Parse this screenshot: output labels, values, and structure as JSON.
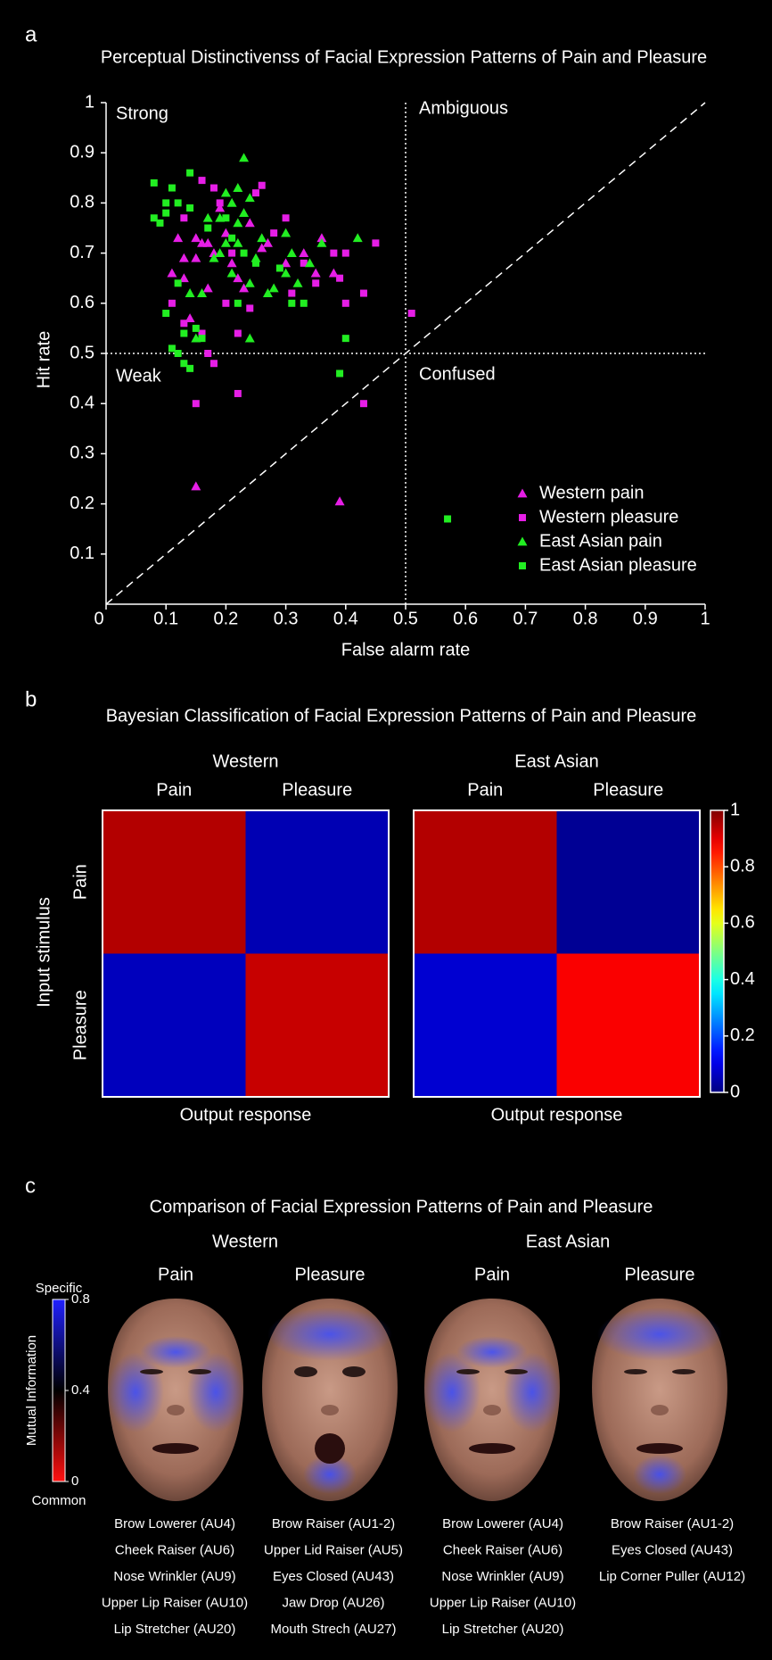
{
  "panel_labels": [
    "a",
    "b",
    "c"
  ],
  "chart_data": [
    {
      "type": "scatter",
      "title": "Perceptual Distinctivenss of Facial Expression Patterns of Pain and Pleasure",
      "xlabel": "False alarm rate",
      "ylabel": "Hit rate",
      "xlim": [
        0,
        1
      ],
      "ylim": [
        0,
        1
      ],
      "xticks": [
        0,
        0.1,
        0.2,
        0.3,
        0.4,
        0.5,
        0.6,
        0.7,
        0.8,
        0.9,
        1
      ],
      "yticks": [
        0.1,
        0.2,
        0.3,
        0.4,
        0.5,
        0.6,
        0.7,
        0.8,
        0.9,
        1
      ],
      "threshold": 0.5,
      "annotations": [
        "Strong",
        "Ambiguous",
        "Weak",
        "Confused"
      ],
      "legend": "lower right",
      "series": [
        {
          "name": "Western pain",
          "color": "#e61ee6",
          "marker": "triangle",
          "x": [
            0.15,
            0.39,
            0.15,
            0.16,
            0.17,
            0.18,
            0.12,
            0.13,
            0.14,
            0.13,
            0.19,
            0.2,
            0.21,
            0.24,
            0.22,
            0.26,
            0.3,
            0.33,
            0.36,
            0.38,
            0.15,
            0.11,
            0.17,
            0.23,
            0.27,
            0.35
          ],
          "y": [
            0.235,
            0.205,
            0.73,
            0.72,
            0.72,
            0.7,
            0.73,
            0.69,
            0.57,
            0.65,
            0.79,
            0.74,
            0.68,
            0.76,
            0.65,
            0.71,
            0.68,
            0.7,
            0.73,
            0.66,
            0.69,
            0.66,
            0.63,
            0.63,
            0.72,
            0.66
          ]
        },
        {
          "name": "Western pleasure",
          "color": "#e61ee6",
          "marker": "square",
          "x": [
            0.51,
            0.43,
            0.22,
            0.15,
            0.18,
            0.17,
            0.16,
            0.26,
            0.18,
            0.19,
            0.25,
            0.3,
            0.45,
            0.43,
            0.4,
            0.4,
            0.38,
            0.39,
            0.35,
            0.31,
            0.28,
            0.24,
            0.2,
            0.11,
            0.13,
            0.16,
            0.21,
            0.13,
            0.33,
            0.22
          ],
          "y": [
            0.58,
            0.4,
            0.42,
            0.4,
            0.48,
            0.5,
            0.845,
            0.835,
            0.83,
            0.8,
            0.82,
            0.77,
            0.72,
            0.62,
            0.6,
            0.7,
            0.7,
            0.65,
            0.64,
            0.62,
            0.74,
            0.59,
            0.6,
            0.6,
            0.56,
            0.54,
            0.7,
            0.77,
            0.68,
            0.54
          ]
        },
        {
          "name": "East Asian pain",
          "color": "#22ee22",
          "marker": "triangle",
          "x": [
            0.23,
            0.22,
            0.21,
            0.19,
            0.2,
            0.24,
            0.23,
            0.22,
            0.2,
            0.19,
            0.18,
            0.21,
            0.24,
            0.25,
            0.27,
            0.28,
            0.3,
            0.31,
            0.34,
            0.36,
            0.42,
            0.16,
            0.14,
            0.15,
            0.24,
            0.32,
            0.26,
            0.17,
            0.3,
            0.22
          ],
          "y": [
            0.89,
            0.83,
            0.8,
            0.77,
            0.82,
            0.81,
            0.78,
            0.76,
            0.72,
            0.7,
            0.69,
            0.66,
            0.64,
            0.69,
            0.62,
            0.63,
            0.66,
            0.7,
            0.68,
            0.72,
            0.73,
            0.62,
            0.62,
            0.53,
            0.53,
            0.64,
            0.73,
            0.77,
            0.74,
            0.72
          ]
        },
        {
          "name": "East Asian pleasure",
          "color": "#22ee22",
          "marker": "square",
          "x": [
            0.57,
            0.39,
            0.4,
            0.13,
            0.14,
            0.11,
            0.12,
            0.1,
            0.08,
            0.09,
            0.1,
            0.11,
            0.1,
            0.12,
            0.14,
            0.14,
            0.13,
            0.15,
            0.16,
            0.12,
            0.17,
            0.2,
            0.21,
            0.23,
            0.25,
            0.29,
            0.31,
            0.33,
            0.08,
            0.22
          ],
          "y": [
            0.17,
            0.46,
            0.53,
            0.48,
            0.47,
            0.51,
            0.5,
            0.58,
            0.77,
            0.76,
            0.8,
            0.83,
            0.78,
            0.8,
            0.86,
            0.79,
            0.54,
            0.55,
            0.53,
            0.64,
            0.75,
            0.77,
            0.73,
            0.7,
            0.68,
            0.67,
            0.6,
            0.6,
            0.84,
            0.6
          ]
        }
      ]
    },
    {
      "type": "heatmap",
      "title": "Bayesian Classification of Facial Expression Patterns of Pain and Pleasure",
      "rows": [
        "Pain",
        "Pleasure"
      ],
      "columns": [
        "Pain",
        "Pleasure"
      ],
      "ylabel": "Input stimulus",
      "xlabel": "Output response",
      "colormap": "jet",
      "clim": [
        0,
        1
      ],
      "colorbar_ticks": [
        0,
        0.2,
        0.4,
        0.6,
        0.8,
        1
      ],
      "panels": [
        {
          "name": "Western",
          "values": [
            [
              0.95,
              0.05
            ],
            [
              0.06,
              0.93
            ]
          ]
        },
        {
          "name": "East Asian",
          "values": [
            [
              0.95,
              0.02
            ],
            [
              0.08,
              0.88
            ]
          ]
        }
      ]
    }
  ],
  "panel_c": {
    "title": "Comparison of Facial Expression Patterns of Pain and Pleasure",
    "colorbar": {
      "label": "Mutual Information",
      "top_label": "Specific",
      "bottom_label": "Common",
      "lim": [
        0,
        0.8
      ],
      "ticks": [
        0,
        0.4,
        0.8
      ]
    },
    "groups": [
      {
        "name": "Western",
        "faces": [
          {
            "label": "Pain",
            "action_units": [
              "Brow Lowerer (AU4)",
              "Cheek Raiser (AU6)",
              "Nose Wrinkler (AU9)",
              "Upper Lip Raiser (AU10)",
              "Lip Stretcher (AU20)"
            ]
          },
          {
            "label": "Pleasure",
            "action_units": [
              "Brow Raiser (AU1-2)",
              "Upper Lid Raiser (AU5)",
              "Eyes Closed (AU43)",
              "Jaw Drop (AU26)",
              "Mouth Strech (AU27)"
            ]
          }
        ]
      },
      {
        "name": "East Asian",
        "faces": [
          {
            "label": "Pain",
            "action_units": [
              "Brow Lowerer (AU4)",
              "Cheek Raiser (AU6)",
              "Nose Wrinkler (AU9)",
              "Upper Lip Raiser (AU10)",
              "Lip Stretcher (AU20)"
            ]
          },
          {
            "label": "Pleasure",
            "action_units": [
              "Brow Raiser (AU1-2)",
              "Eyes Closed (AU43)",
              "Lip Corner Puller (AU12)"
            ]
          }
        ]
      }
    ]
  }
}
